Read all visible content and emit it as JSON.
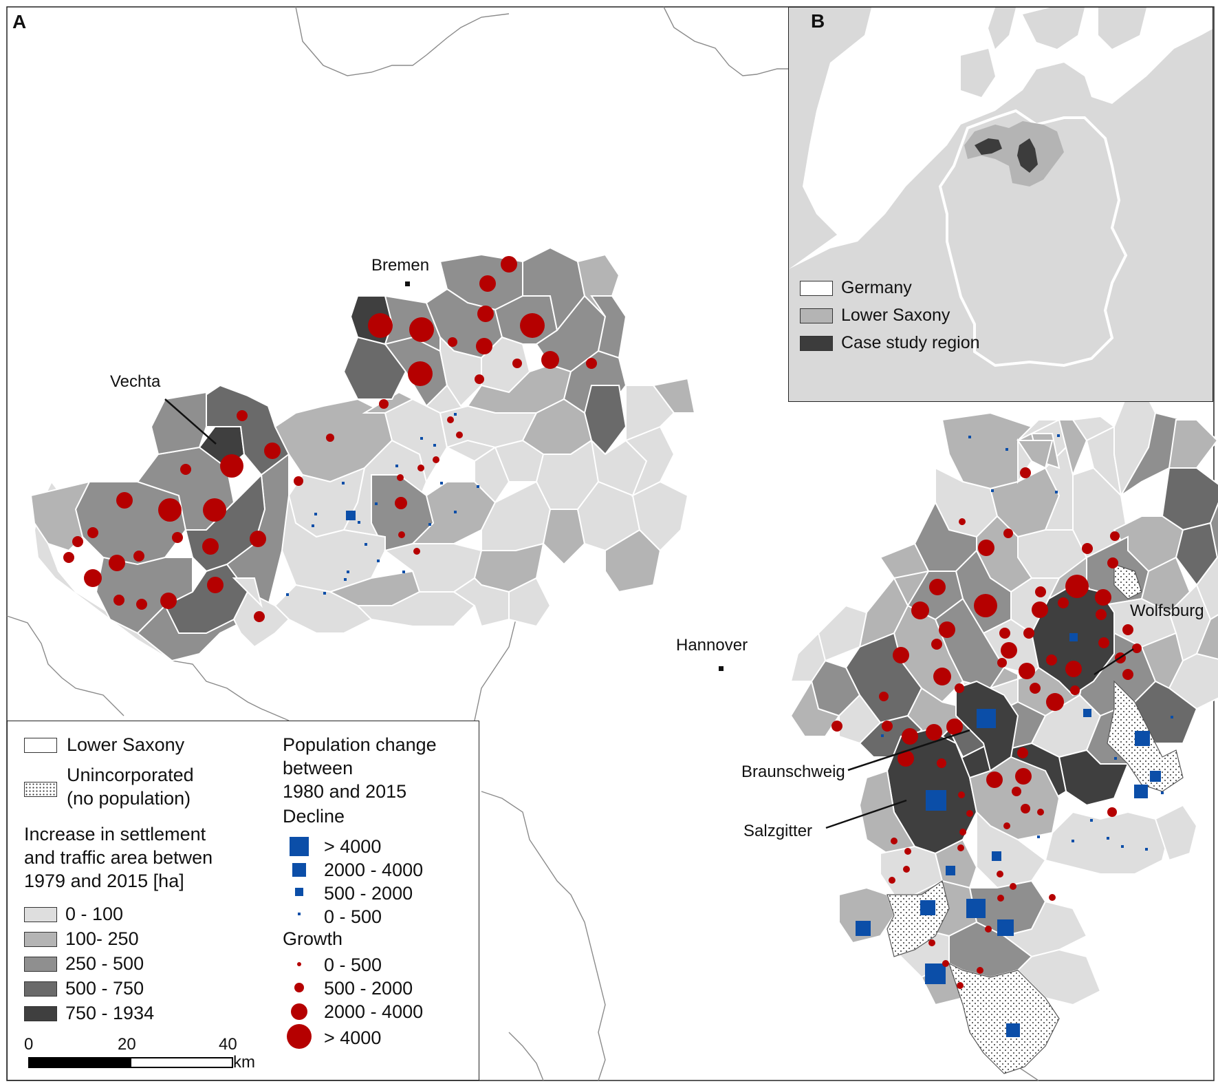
{
  "panel_a": {
    "letter": "A",
    "places": {
      "bremen": "Bremen",
      "vechta": "Vechta",
      "hannover": "Hannover",
      "wolfsburg": "Wolfsburg",
      "braunschweig": "Braunschweig",
      "salzgitter": "Salzgitter"
    }
  },
  "panel_b": {
    "letter": "B",
    "legend": [
      {
        "label": "Germany",
        "color": "#ffffff"
      },
      {
        "label": "Lower Saxony",
        "color": "#b4b4b4"
      },
      {
        "label": "Case study region",
        "color": "#3c3c3c"
      }
    ]
  },
  "legend": {
    "lower_saxony": "Lower Saxony",
    "unincorporated_1": "Unincorporated",
    "unincorporated_2": "(no population)",
    "area_title_1": "Increase in settlement",
    "area_title_2": "and traffic area betwen",
    "area_title_3": "1979 and 2015 [ha]",
    "area_classes": [
      {
        "label": "0 - 100",
        "color": "#dedede"
      },
      {
        "label": "100- 250",
        "color": "#b4b4b4"
      },
      {
        "label": "250 - 500",
        "color": "#8f8f8f"
      },
      {
        "label": "500 - 750",
        "color": "#6a6a6a"
      },
      {
        "label": "750 - 1934",
        "color": "#3f3f3f"
      }
    ],
    "pop_title_1": "Population change",
    "pop_title_2": "between",
    "pop_title_3": "1980 and 2015",
    "decline_title": "Decline",
    "decline_classes": [
      "> 4000",
      "2000 - 4000",
      "500 - 2000",
      "0 - 500"
    ],
    "growth_title": "Growth",
    "growth_classes": [
      "0 - 500",
      "500 - 2000",
      "2000 - 4000",
      "> 4000"
    ],
    "decline_color": "#0b4ea8",
    "growth_color": "#b50000",
    "scale": {
      "ticks": [
        "0",
        "20",
        "40"
      ],
      "unit": "km"
    }
  }
}
